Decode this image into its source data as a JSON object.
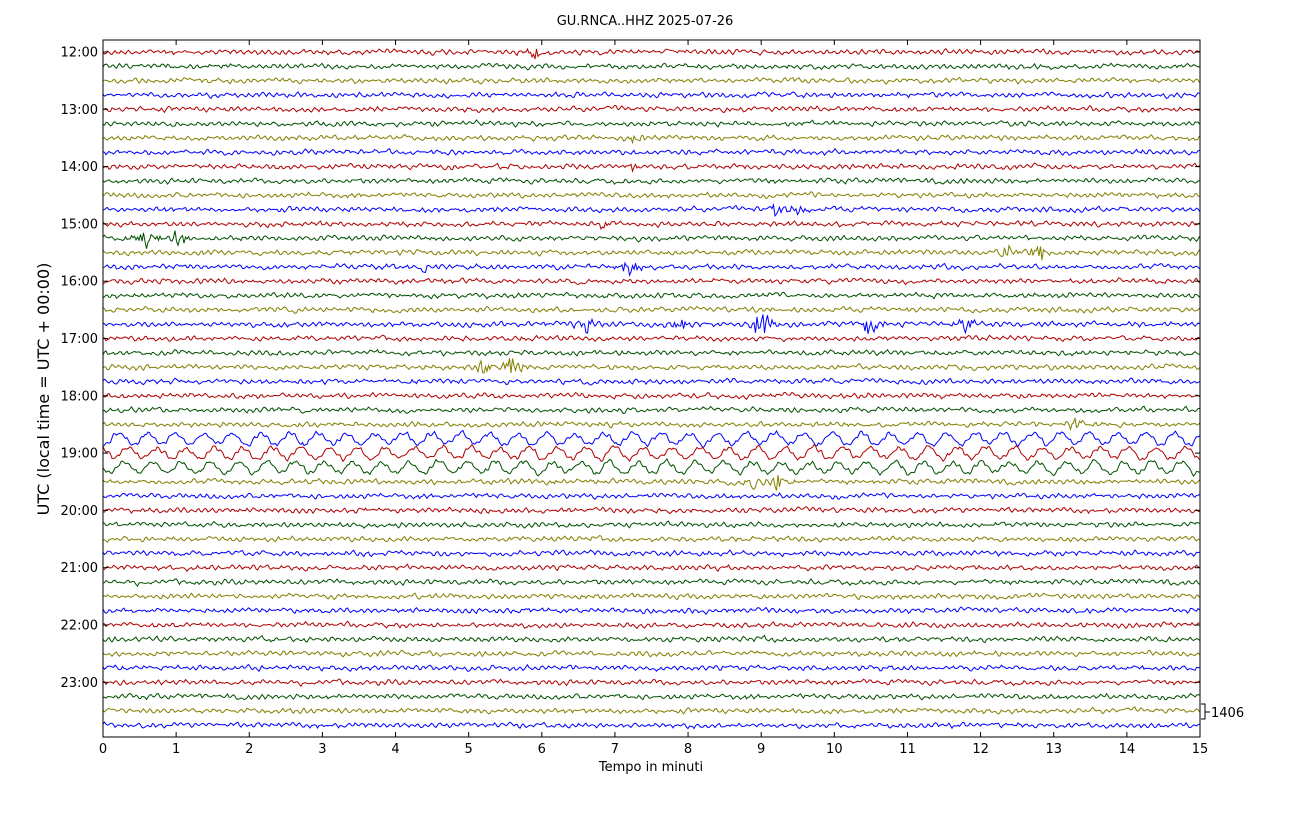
{
  "chart_data": {
    "type": "line",
    "title": "GU.RNCA..HHZ 2025-07-26",
    "xlabel": "Tempo in minuti",
    "ylabel": "UTC (local time = UTC + 00:00)",
    "xlim": [
      0,
      15
    ],
    "x_ticks": [
      "0",
      "1",
      "2",
      "3",
      "4",
      "5",
      "6",
      "7",
      "8",
      "9",
      "10",
      "11",
      "12",
      "13",
      "14",
      "15"
    ],
    "y_ticks": [
      "12:00",
      "13:00",
      "14:00",
      "15:00",
      "16:00",
      "17:00",
      "18:00",
      "19:00",
      "20:00",
      "21:00",
      "22:00",
      "23:00"
    ],
    "traces_per_hour": 4,
    "trace_minutes": 15,
    "trace_colors": [
      "#b00000",
      "#005000",
      "#808000",
      "#0000ff"
    ],
    "scale_label": "1406",
    "grid": false,
    "events": [
      {
        "trace": 0,
        "minute": 5.9,
        "amp": 0.8
      },
      {
        "trace": 6,
        "minute": 7.3,
        "amp": 0.6
      },
      {
        "trace": 8,
        "minute": 7.2,
        "amp": 0.5
      },
      {
        "trace": 11,
        "minute": 9.2,
        "amp": 0.9
      },
      {
        "trace": 11,
        "minute": 9.5,
        "amp": 0.6
      },
      {
        "trace": 12,
        "minute": 6.8,
        "amp": 0.7
      },
      {
        "trace": 13,
        "minute": 0.6,
        "amp": 1.4
      },
      {
        "trace": 13,
        "minute": 1.0,
        "amp": 1.0
      },
      {
        "trace": 14,
        "minute": 12.4,
        "amp": 1.0
      },
      {
        "trace": 14,
        "minute": 12.8,
        "amp": 1.1
      },
      {
        "trace": 15,
        "minute": 7.2,
        "amp": 1.3
      },
      {
        "trace": 15,
        "minute": 4.4,
        "amp": 0.6
      },
      {
        "trace": 19,
        "minute": 6.6,
        "amp": 1.2
      },
      {
        "trace": 19,
        "minute": 7.9,
        "amp": 0.9
      },
      {
        "trace": 19,
        "minute": 9.0,
        "amp": 2.2
      },
      {
        "trace": 19,
        "minute": 10.5,
        "amp": 1.8
      },
      {
        "trace": 19,
        "minute": 11.8,
        "amp": 1.0
      },
      {
        "trace": 22,
        "minute": 5.6,
        "amp": 1.6
      },
      {
        "trace": 22,
        "minute": 5.2,
        "amp": 1.0
      },
      {
        "trace": 26,
        "minute": 13.3,
        "amp": 0.8
      },
      {
        "trace": 30,
        "minute": 9.2,
        "amp": 1.6
      },
      {
        "trace": 30,
        "minute": 8.9,
        "amp": 0.8
      }
    ],
    "swell_traces": [
      27,
      28,
      29
    ]
  }
}
